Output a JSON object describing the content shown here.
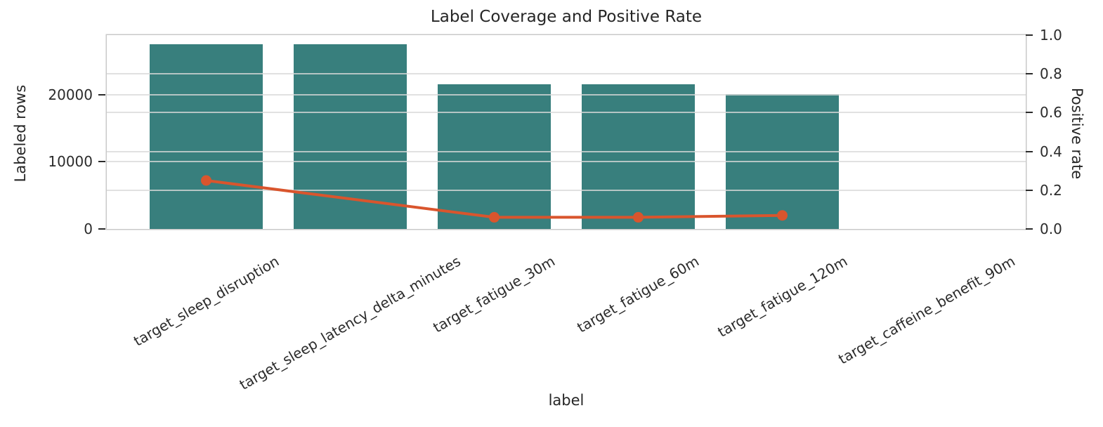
{
  "figure": {
    "title": "Label Coverage and Positive Rate",
    "xlabel": "label",
    "ylabel_left": "Labeled rows",
    "ylabel_right": "Positive rate"
  },
  "colors": {
    "bar": "#387f7d",
    "line": "#d9552d",
    "grid": "rgba(217,217,217,0.78)",
    "spine": "#c9c9c9",
    "text": "#2b2b2b"
  },
  "chart_data": {
    "type": "bar",
    "title": "Label Coverage and Positive Rate",
    "xlabel": "label",
    "ylabel_left": "Labeled rows",
    "ylabel_right": "Positive rate",
    "categories": [
      "target_sleep_disruption",
      "target_sleep_latency_delta_minutes",
      "target_fatigue_30m",
      "target_fatigue_60m",
      "target_fatigue_120m",
      "target_caffeine_benefit_90m"
    ],
    "series": [
      {
        "name": "Labeled rows",
        "type": "bar",
        "axis": "left",
        "values": [
          27540,
          27540,
          21570,
          21570,
          20110,
          0
        ]
      },
      {
        "name": "Positive rate",
        "type": "line",
        "axis": "right",
        "values": [
          0.25,
          null,
          0.06,
          0.06,
          0.07,
          null
        ]
      }
    ],
    "ylim_left": [
      0,
      28900
    ],
    "ylim_right": [
      0,
      1.0
    ],
    "yticks_left": [
      0,
      10000,
      20000
    ],
    "yticks_right": [
      0,
      0.2,
      0.4,
      0.6,
      0.8,
      1.0
    ],
    "xlim": [
      -0.69,
      5.69
    ],
    "grid": true,
    "legend": false,
    "x_tick_rotation": 30
  }
}
